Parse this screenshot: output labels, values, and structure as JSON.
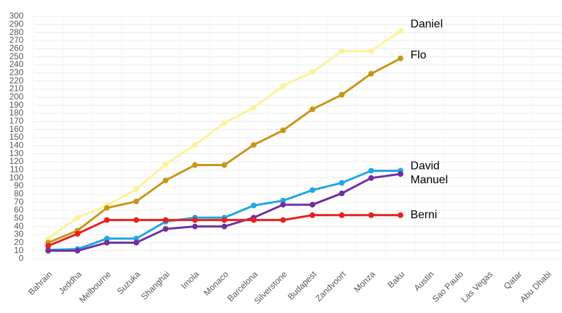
{
  "chart_data": {
    "type": "line",
    "categories": [
      "Bahrain",
      "Jeddha",
      "Melbourne",
      "Suzuka",
      "Shanghai",
      "Imola",
      "Monaco",
      "Barcelona",
      "Silverstone",
      "Budapest",
      "Zandvoort",
      "Monza",
      "Baku",
      "Austin",
      "Sao Paulo",
      "Las Vegas",
      "Qatar",
      "Abu Dhabi"
    ],
    "series": [
      {
        "name": "Daniel",
        "color": "#fbf49a",
        "values": [
          25,
          51,
          66,
          86,
          117,
          141,
          168,
          187,
          214,
          231,
          257,
          257,
          282,
          null,
          null,
          null,
          null,
          null
        ]
      },
      {
        "name": "Flo",
        "color": "#c9961a",
        "values": [
          20,
          35,
          63,
          71,
          97,
          116,
          116,
          141,
          159,
          185,
          203,
          229,
          248,
          null,
          null,
          null,
          null,
          null
        ]
      },
      {
        "name": "David",
        "color": "#1fa8e0",
        "values": [
          11,
          12,
          25,
          25,
          46,
          51,
          51,
          66,
          72,
          85,
          94,
          109,
          109,
          null,
          null,
          null,
          null,
          null
        ]
      },
      {
        "name": "Manuel",
        "color": "#7030a0",
        "values": [
          10,
          10,
          20,
          20,
          37,
          40,
          40,
          51,
          67,
          67,
          81,
          100,
          105,
          null,
          null,
          null,
          null,
          null
        ]
      },
      {
        "name": "Berni",
        "color": "#e82020",
        "values": [
          16,
          31,
          48,
          48,
          48,
          48,
          48,
          48,
          48,
          54,
          54,
          54,
          54,
          null,
          null,
          null,
          null,
          null
        ]
      }
    ],
    "ylim": [
      0,
      300
    ],
    "yticks": [
      0,
      10,
      20,
      30,
      40,
      50,
      60,
      70,
      80,
      90,
      100,
      110,
      120,
      130,
      140,
      150,
      160,
      170,
      180,
      190,
      200,
      210,
      220,
      230,
      240,
      250,
      260,
      270,
      280,
      290,
      300
    ],
    "grid": true
  }
}
